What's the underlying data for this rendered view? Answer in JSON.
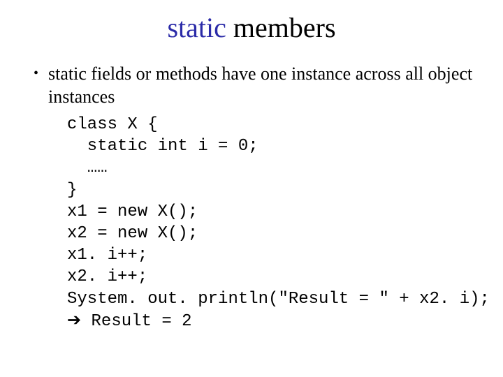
{
  "title": {
    "keyword": "static",
    "rest": " members",
    "keyword_color": "#2b2ba8",
    "rest_color": "#000000",
    "fontsize": 40
  },
  "bullet": {
    "marker": "•",
    "keyword": "static",
    "text_after": " fields or methods have one instance across all object instances",
    "fontsize": 26
  },
  "code": {
    "font": "Courier New",
    "fontsize": 24,
    "lines": {
      "l0": "class X {",
      "l1": "  static int i = 0;",
      "l2": "  ……",
      "l3": "}",
      "l4": "x1 = new X();",
      "l5": "x2 = new X();",
      "l6": "x1. i++;",
      "l7": "x2. i++;",
      "l8": "System. out. println(\"Result = \" + x2. i);",
      "l9_arrow": "➔",
      "l9_text": " Result = 2"
    }
  },
  "colors": {
    "background": "#ffffff",
    "text": "#000000",
    "keyword": "#2b2ba8"
  }
}
